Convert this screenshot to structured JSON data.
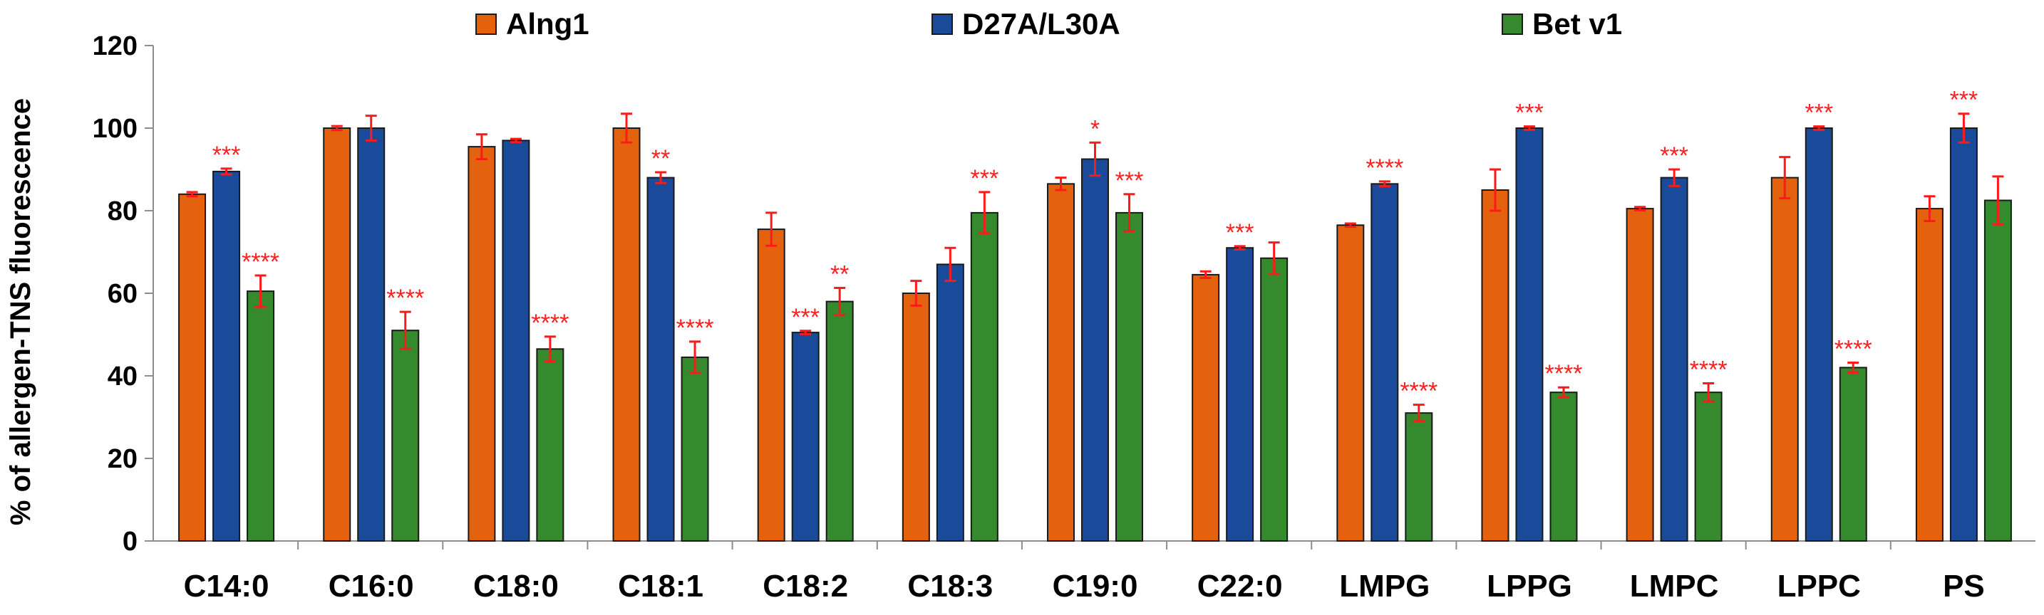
{
  "chart_data": {
    "type": "bar",
    "title": "",
    "xlabel": "",
    "ylabel": "% of allergen-TNS fluorescence",
    "ylim": [
      0,
      120
    ],
    "yticks": [
      "0",
      "20",
      "40",
      "60",
      "80",
      "100",
      "120"
    ],
    "grid": false,
    "legend_position": "top",
    "categories": [
      "C14:0",
      "C16:0",
      "C18:0",
      "C18:1",
      "C18:2",
      "C18:3",
      "C19:0",
      "C22:0",
      "LMPG",
      "LPPG",
      "LMPC",
      "LPPC",
      "PS"
    ],
    "series": [
      {
        "name": "Alng1",
        "color": "#e4620e",
        "values": [
          84,
          100,
          95.5,
          100,
          75.5,
          60,
          86.5,
          64.5,
          76.5,
          85,
          80.5,
          88,
          80.5
        ],
        "errors": [
          0.5,
          0.5,
          3,
          3.5,
          4,
          3,
          1.5,
          0.8,
          0.4,
          5,
          0.4,
          5,
          3
        ],
        "significance": [
          "",
          "",
          "",
          "",
          "",
          "",
          "",
          "",
          "",
          "",
          "",
          "",
          ""
        ]
      },
      {
        "name": "D27A/L30A",
        "color": "#1a4b9a",
        "values": [
          89.5,
          100,
          97,
          88,
          50.5,
          67,
          92.5,
          71,
          86.5,
          100,
          88,
          100,
          100
        ],
        "errors": [
          0.7,
          3,
          0.4,
          1.3,
          0.4,
          4,
          4,
          0.4,
          0.6,
          0.4,
          2,
          0.4,
          3.5
        ],
        "significance": [
          "***",
          "",
          "",
          "**",
          "***",
          "",
          "*",
          "***",
          "****",
          "***",
          "***",
          "***",
          "***"
        ]
      },
      {
        "name": "Bet v1",
        "color": "#358a2e",
        "values": [
          60.5,
          51,
          46.5,
          44.5,
          58,
          79.5,
          79.5,
          68.5,
          31,
          36,
          36,
          42,
          82.5
        ],
        "errors": [
          3.8,
          4.5,
          3,
          3.8,
          3.3,
          5,
          4.5,
          3.8,
          2,
          1.2,
          2.2,
          1.2,
          5.8
        ],
        "significance": [
          "****",
          "****",
          "****",
          "****",
          "**",
          "***",
          "***",
          "",
          "****",
          "****",
          "****",
          "****",
          ""
        ]
      }
    ]
  }
}
